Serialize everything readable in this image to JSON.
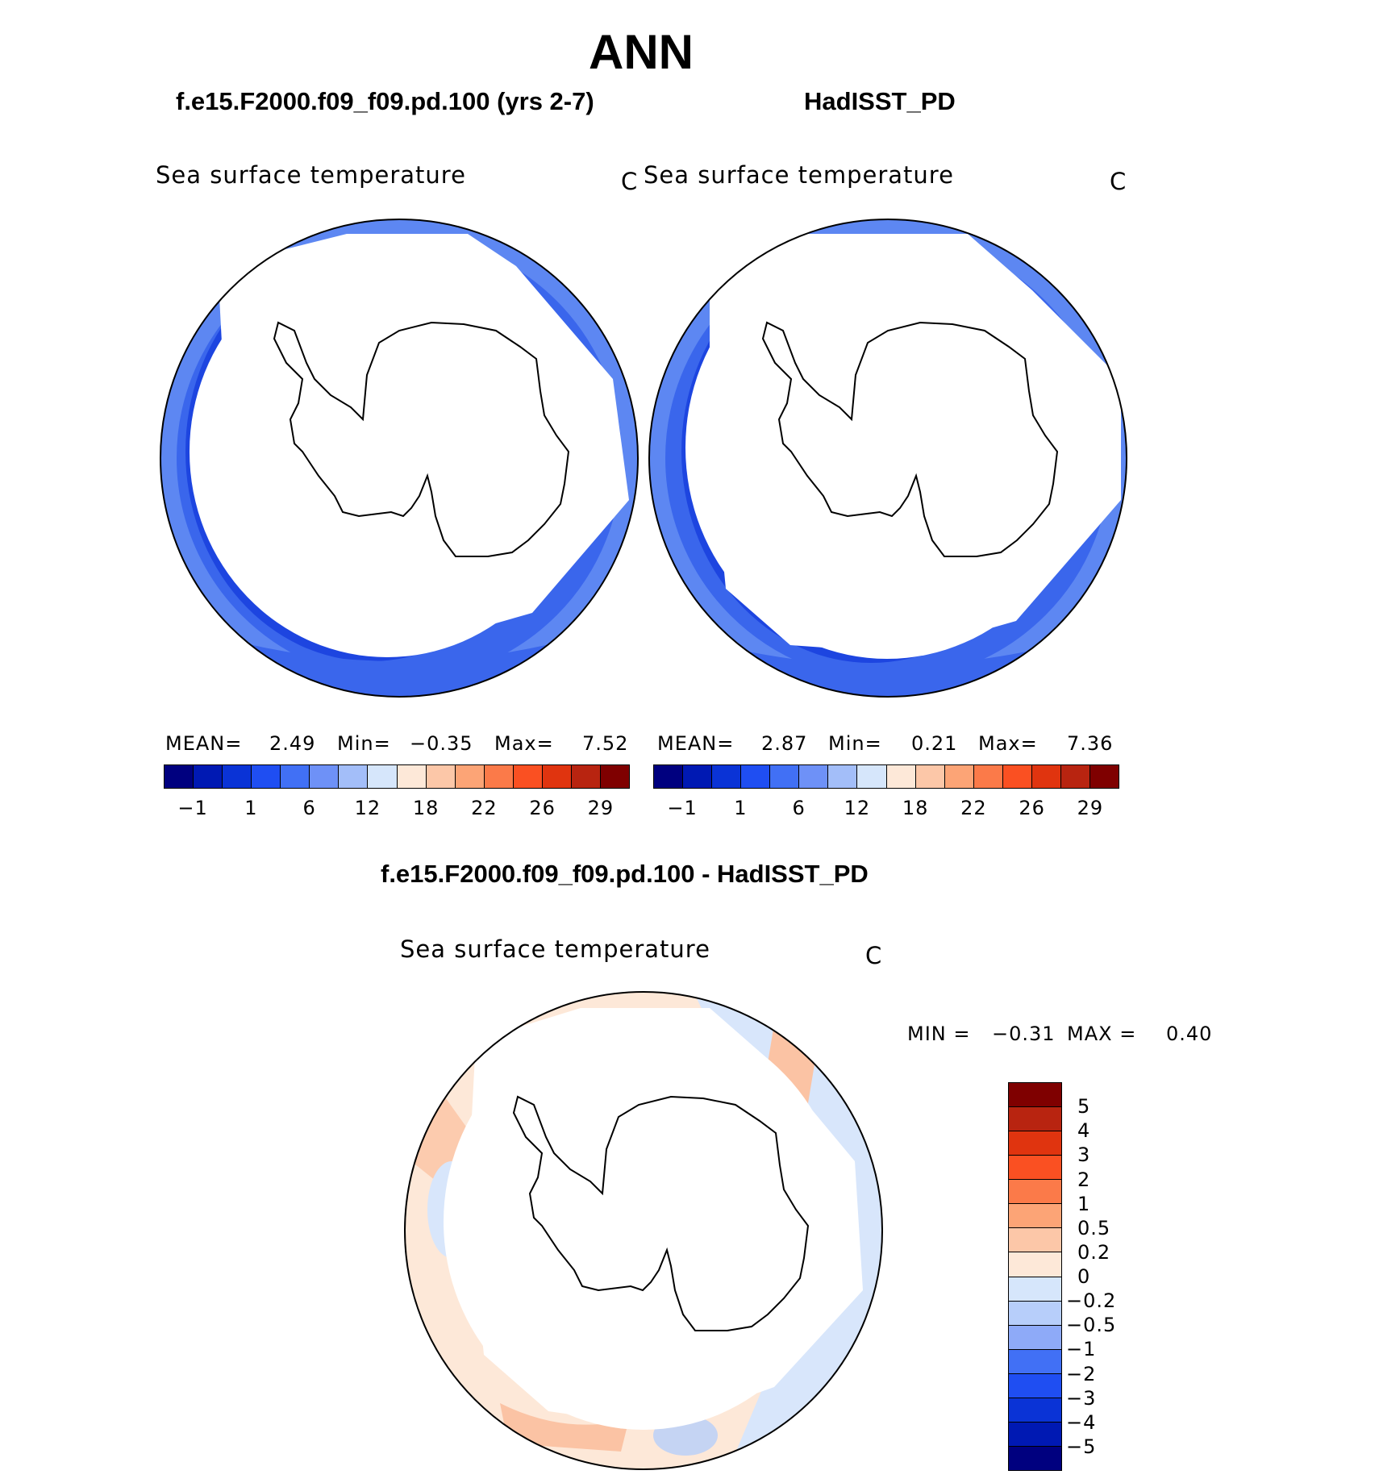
{
  "title": "ANN",
  "panels": [
    {
      "title": "f.e15.F2000.f09_f09.pd.100 (yrs 2-7)",
      "variable": "Sea surface temperature",
      "units": "C",
      "stats": {
        "mean_label": "MEAN=",
        "mean": "2.49",
        "min_label": "Min=",
        "min": "−0.35",
        "max_label": "Max=",
        "max": "7.52"
      }
    },
    {
      "title": "HadISST_PD",
      "variable": "Sea surface temperature",
      "units": "C",
      "stats": {
        "mean_label": "MEAN=",
        "mean": "2.87",
        "min_label": "Min=",
        "min": "0.21",
        "max_label": "Max=",
        "max": "7.36"
      }
    }
  ],
  "difference": {
    "title": "f.e15.F2000.f09_f09.pd.100 - HadISST_PD",
    "variable": "Sea surface temperature",
    "units": "C",
    "min_label": "MIN =",
    "min": "−0.31",
    "max_label": "MAX =",
    "max": "0.40"
  },
  "colorbar_abs": {
    "colors": [
      "#00007f",
      "#0019b3",
      "#0a33d6",
      "#1f4ef2",
      "#4170f5",
      "#6e91f7",
      "#a3bef9",
      "#d6e6fb",
      "#fde8d8",
      "#fcc7a8",
      "#fca476",
      "#fb7a49",
      "#fa5022",
      "#e0340f",
      "#b82410",
      "#7f0000"
    ],
    "tick_labels": [
      "−1",
      "1",
      "6",
      "12",
      "18",
      "22",
      "26",
      "29"
    ]
  },
  "colorbar_diff": {
    "colors": [
      "#7f0000",
      "#b82410",
      "#e0340f",
      "#fa5022",
      "#fb7a49",
      "#fca476",
      "#fcc7a8",
      "#fde8d8",
      "#d6e6fb",
      "#b7cefa",
      "#8eaaf8",
      "#4170f5",
      "#1f4ef2",
      "#0a33d6",
      "#0019b3",
      "#00007f"
    ],
    "tick_labels": [
      "5",
      "4",
      "3",
      "2",
      "1",
      "0.5",
      "0.2",
      "0",
      "−0.2",
      "−0.5",
      "−1",
      "−2",
      "−3",
      "−4",
      "−5"
    ]
  },
  "map_colors": {
    "ocean_1": "#2a5ce8",
    "ocean_2": "#1d45e0",
    "ocean_3": "#4d7af0",
    "ocean_4": "#7ea2f5",
    "diff_pos": "#fcdcc8",
    "diff_pos2": "#fbc3a4",
    "diff_neg": "#d8e6fb",
    "diff_neg2": "#b7cefa"
  }
}
